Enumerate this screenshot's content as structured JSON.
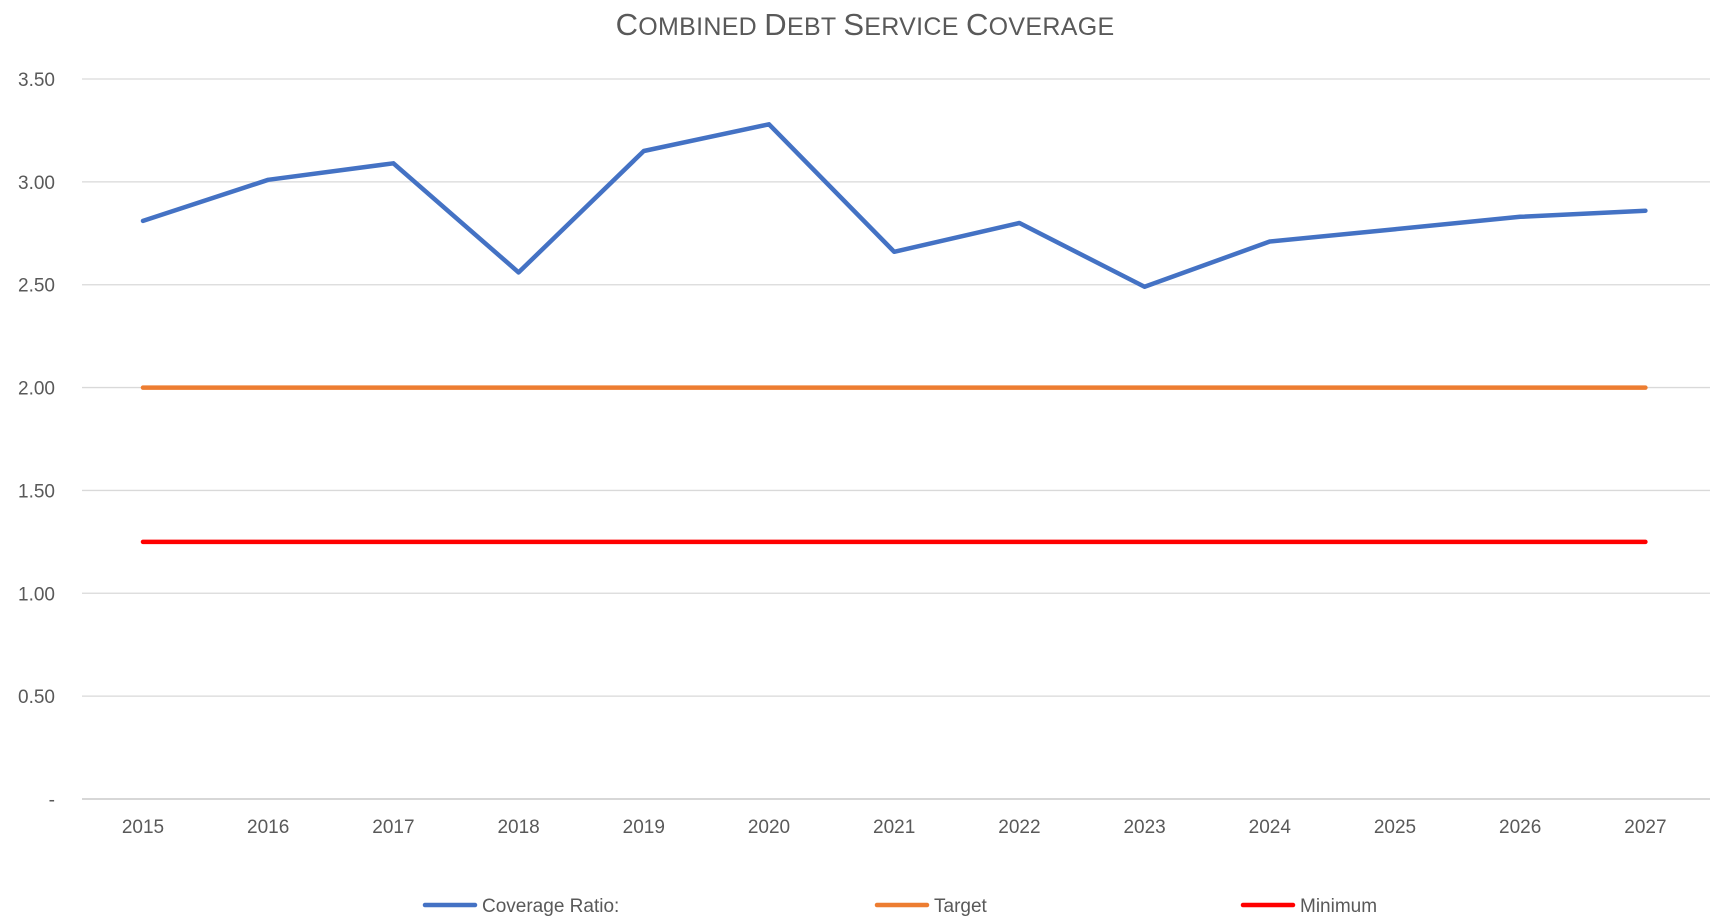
{
  "chart_data": {
    "type": "line",
    "title": "Combined Debt Service Coverage",
    "x": [
      "2015",
      "2016",
      "2017",
      "2018",
      "2019",
      "2020",
      "2021",
      "2022",
      "2023",
      "2024",
      "2025",
      "2026",
      "2027"
    ],
    "series": [
      {
        "name": "Coverage Ratio:",
        "color": "#4472c4",
        "values": [
          2.81,
          3.01,
          3.09,
          2.56,
          3.15,
          3.28,
          2.66,
          2.8,
          2.49,
          2.71,
          2.77,
          2.83,
          2.86
        ]
      },
      {
        "name": "Target",
        "color": "#ed7d31",
        "values": [
          2.0,
          2.0,
          2.0,
          2.0,
          2.0,
          2.0,
          2.0,
          2.0,
          2.0,
          2.0,
          2.0,
          2.0,
          2.0
        ]
      },
      {
        "name": "Minimum",
        "color": "#ff0000",
        "values": [
          1.25,
          1.25,
          1.25,
          1.25,
          1.25,
          1.25,
          1.25,
          1.25,
          1.25,
          1.25,
          1.25,
          1.25,
          1.25
        ]
      }
    ],
    "ylim": [
      0,
      3.5
    ],
    "y_ticks": [
      {
        "value": 0,
        "label": "-"
      },
      {
        "value": 0.5,
        "label": "0.50"
      },
      {
        "value": 1.0,
        "label": "1.00"
      },
      {
        "value": 1.5,
        "label": "1.50"
      },
      {
        "value": 2.0,
        "label": "2.00"
      },
      {
        "value": 2.5,
        "label": "2.50"
      },
      {
        "value": 3.0,
        "label": "3.00"
      },
      {
        "value": 3.5,
        "label": "3.50"
      }
    ],
    "xlabel": "",
    "ylabel": "",
    "grid": true,
    "legend_position": "bottom"
  }
}
